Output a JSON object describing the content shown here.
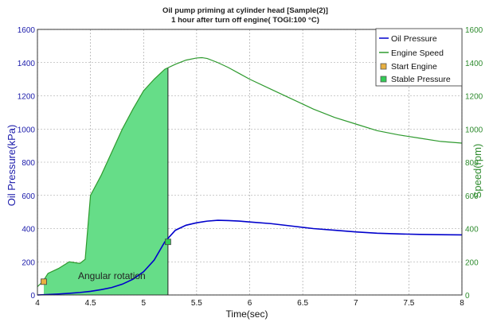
{
  "chart_data": {
    "type": "line",
    "title": "Oil pump priming at cylinder head [Sample(2)]",
    "subtitle": "1 hour after turn off engine( TOGI:100 °C)",
    "xlabel": "Time(sec)",
    "ylabel_left": "Oil Pressure(kPa)",
    "ylabel_right": "Speed(rpm)",
    "xlim": [
      4,
      8
    ],
    "ylim_left": [
      0,
      1600
    ],
    "ylim_right": [
      0,
      1600
    ],
    "xticks": [
      "4",
      "4.5",
      "5",
      "5.5",
      "6",
      "6.5",
      "7",
      "7.5",
      "8"
    ],
    "yticks_left": [
      "0",
      "200",
      "400",
      "600",
      "800",
      "1000",
      "1200",
      "1400",
      "1600"
    ],
    "yticks_right": [
      "0",
      "200",
      "400",
      "600",
      "800",
      "1000",
      "1200",
      "1400",
      "1600"
    ],
    "grid": true,
    "legend_position": "top-right",
    "colors": {
      "oil_pressure": "#0000cc",
      "engine_speed": "#2e9a2e",
      "fill": "#66dd88",
      "left_axis": "#1a1aaa",
      "right_axis": "#2e8b2e",
      "start_marker": "#e8b040",
      "stable_marker": "#33cc55"
    },
    "legend": [
      "Oil Pressure",
      "Engine Speed",
      "Start Engine",
      "Stable Pressure"
    ],
    "annotation": "Angular rotation",
    "series": [
      {
        "name": "Oil Pressure",
        "axis": "left",
        "x": [
          4.0,
          4.1,
          4.2,
          4.3,
          4.4,
          4.5,
          4.6,
          4.7,
          4.8,
          4.9,
          5.0,
          5.1,
          5.2,
          5.3,
          5.4,
          5.5,
          5.6,
          5.7,
          5.8,
          5.9,
          6.0,
          6.2,
          6.4,
          6.6,
          6.8,
          7.0,
          7.2,
          7.4,
          7.6,
          7.8,
          8.0
        ],
        "y": [
          0,
          3,
          6,
          10,
          15,
          22,
          32,
          45,
          65,
          95,
          140,
          210,
          320,
          390,
          420,
          435,
          445,
          450,
          448,
          445,
          440,
          430,
          415,
          400,
          390,
          380,
          372,
          368,
          365,
          363,
          362
        ]
      },
      {
        "name": "Engine Speed",
        "axis": "right",
        "x": [
          4.0,
          4.05,
          4.1,
          4.2,
          4.3,
          4.4,
          4.45,
          4.5,
          4.6,
          4.7,
          4.8,
          4.9,
          5.0,
          5.1,
          5.2,
          5.3,
          5.4,
          5.5,
          5.55,
          5.6,
          5.7,
          5.8,
          5.9,
          6.0,
          6.2,
          6.4,
          6.6,
          6.8,
          7.0,
          7.2,
          7.4,
          7.6,
          7.8,
          8.0
        ],
        "y": [
          50,
          80,
          130,
          160,
          200,
          190,
          215,
          600,
          720,
          860,
          1000,
          1120,
          1230,
          1300,
          1360,
          1390,
          1415,
          1428,
          1430,
          1425,
          1400,
          1370,
          1335,
          1300,
          1240,
          1180,
          1120,
          1070,
          1030,
          990,
          965,
          945,
          925,
          915
        ]
      }
    ],
    "events": [
      {
        "name": "Start Engine",
        "x": 4.06,
        "y": 80
      },
      {
        "name": "Stable Pressure",
        "x": 5.23,
        "y": 320
      }
    ],
    "shaded_region": {
      "x_start": 4.06,
      "x_end": 5.23,
      "under": "Engine Speed"
    }
  }
}
